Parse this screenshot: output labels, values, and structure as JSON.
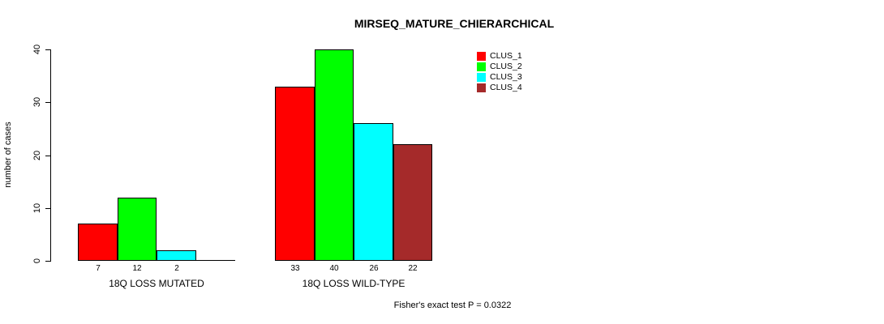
{
  "chart_data": {
    "type": "bar",
    "title": "MIRSEQ_MATURE_CHIERARCHICAL",
    "ylabel": "number of cases",
    "xlabel": "",
    "categories": [
      "18Q LOSS MUTATED",
      "18Q LOSS WILD-TYPE"
    ],
    "series": [
      {
        "name": "CLUS_1",
        "color": "#FF0000",
        "values": [
          7,
          33
        ]
      },
      {
        "name": "CLUS_2",
        "color": "#00FF00",
        "values": [
          12,
          40
        ]
      },
      {
        "name": "CLUS_3",
        "color": "#00FFFF",
        "values": [
          2,
          26
        ]
      },
      {
        "name": "CLUS_4",
        "color": "#A52A2A",
        "values": [
          0,
          22
        ]
      }
    ],
    "yticks": [
      0,
      10,
      20,
      30,
      40
    ],
    "ylim": [
      0,
      40
    ],
    "bar_value_labels_shown_when_nonzero": true,
    "grid": false,
    "legend_position": "top-right-inside",
    "legend_entries": [
      "CLUS_1",
      "CLUS_2",
      "CLUS_3",
      "CLUS_4"
    ]
  },
  "annotation": "Fisher's exact test P = 0.0322",
  "colors": {
    "background": "#FFFFFF",
    "axis": "#000000",
    "bar_border": "#000000",
    "clus_1": "#FF0000",
    "clus_2": "#00FF00",
    "clus_3": "#00FFFF",
    "clus_4": "#A52A2A"
  }
}
